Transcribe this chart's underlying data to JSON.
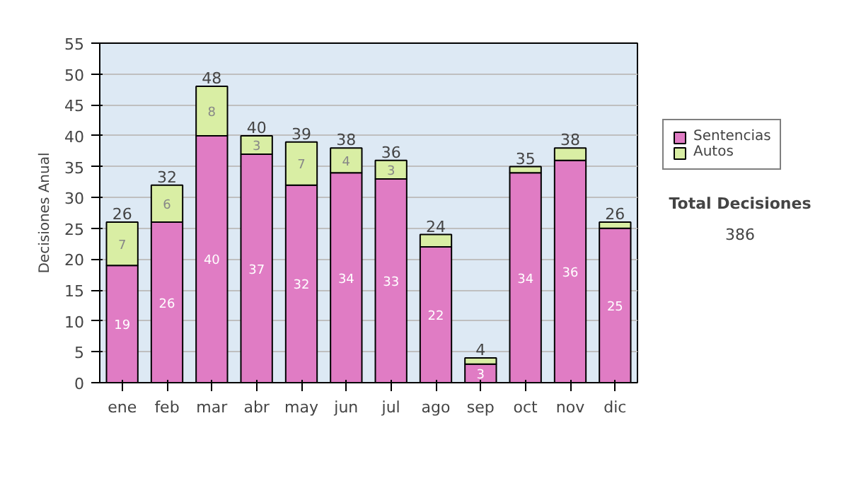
{
  "chart_data": {
    "type": "bar",
    "stacked": true,
    "ylabel": "Decisiones Anual",
    "categories": [
      "ene",
      "feb",
      "mar",
      "abr",
      "may",
      "jun",
      "jul",
      "ago",
      "sep",
      "oct",
      "nov",
      "dic"
    ],
    "series": [
      {
        "name": "Sentencias",
        "color": "#e07cc4",
        "values": [
          19,
          26,
          40,
          37,
          32,
          34,
          33,
          22,
          3,
          34,
          36,
          25
        ],
        "value_labels": [
          "19",
          "26",
          "40",
          "37",
          "32",
          "34",
          "33",
          "22",
          "3",
          "34",
          "36",
          "25"
        ]
      },
      {
        "name": "Autos",
        "color": "#d9eea4",
        "values": [
          7,
          6,
          8,
          3,
          7,
          4,
          3,
          2,
          1,
          1,
          2,
          1
        ],
        "value_labels": [
          "7",
          "6",
          "8",
          "3",
          "7",
          "4",
          "3",
          null,
          null,
          null,
          null,
          null
        ]
      }
    ],
    "totals": [
      "26",
      "32",
      "48",
      "40",
      "39",
      "38",
      "36",
      "24",
      "4",
      "35",
      "38",
      "26"
    ],
    "ylim": [
      0,
      55
    ],
    "yticks": [
      0,
      5,
      10,
      15,
      20,
      25,
      30,
      35,
      40,
      45,
      50,
      55
    ],
    "grid": "y",
    "legend": "right",
    "annotations": [
      "Total Decisiones",
      "386"
    ]
  }
}
